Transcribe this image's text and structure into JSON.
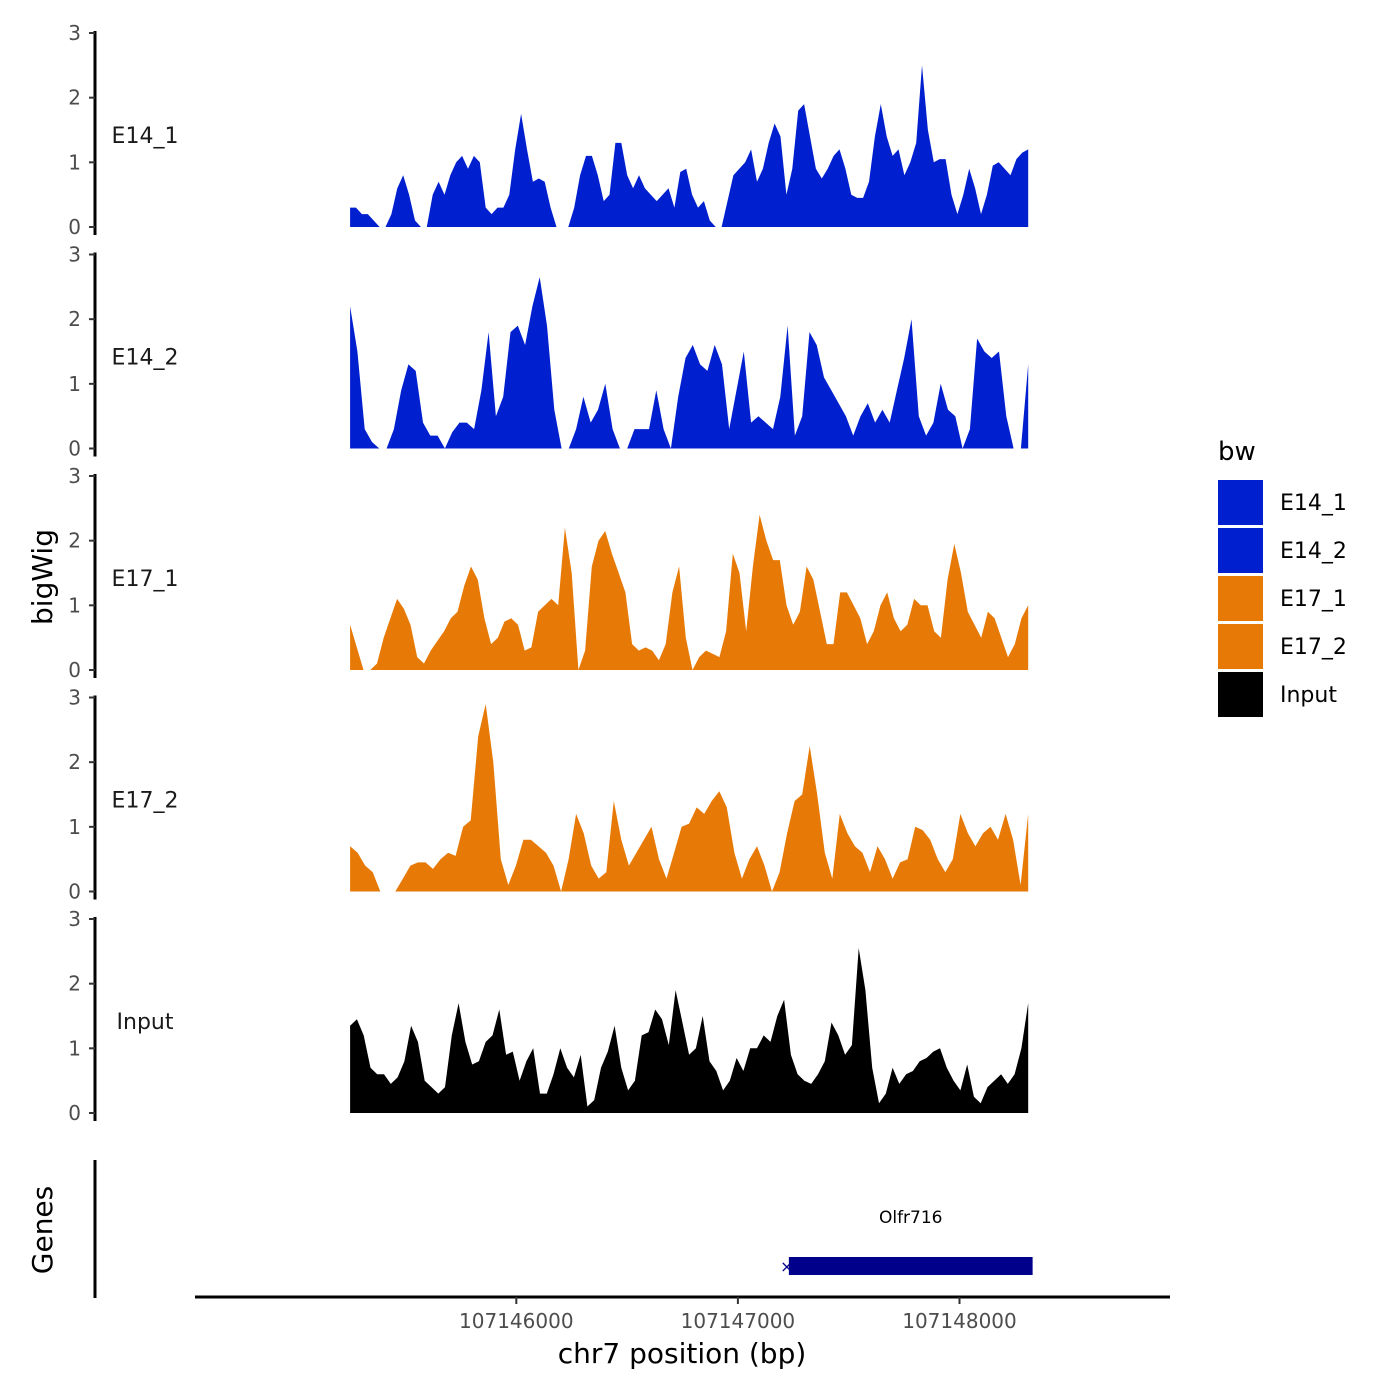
{
  "chart_data": {
    "type": "area",
    "ylabel": "bigWig",
    "xlabel": "chr7 position (bp)",
    "ylim": [
      0,
      3
    ],
    "yticks": [
      0,
      1,
      2,
      3
    ],
    "xlim": [
      107144550,
      107148950
    ],
    "xticks": [
      107146000,
      107147000,
      107148000
    ],
    "data_x_range": [
      107145250,
      107148310
    ],
    "legend": {
      "title": "bw",
      "position": "right",
      "entries": [
        {
          "name": "E14_1",
          "color": "#0020d0"
        },
        {
          "name": "E14_2",
          "color": "#0020d0"
        },
        {
          "name": "E17_1",
          "color": "#e77a06"
        },
        {
          "name": "E17_2",
          "color": "#e77a06"
        },
        {
          "name": "Input",
          "color": "#000000"
        }
      ]
    },
    "tracks": [
      {
        "name": "E14_1",
        "color": "#0020d0",
        "values": [
          0.3,
          0.3,
          0.2,
          0.2,
          0.1,
          0,
          0,
          0.2,
          0.6,
          0.8,
          0.5,
          0.1,
          0,
          0,
          0.5,
          0.7,
          0.5,
          0.8,
          1,
          1.1,
          0.9,
          1.1,
          1,
          0.3,
          0.2,
          0.3,
          0.3,
          0.5,
          1.2,
          1.75,
          1.2,
          0.7,
          0.75,
          0.7,
          0.3,
          0,
          0,
          0,
          0.3,
          0.8,
          1.1,
          1.1,
          0.8,
          0.4,
          0.5,
          1.3,
          1.3,
          0.8,
          0.6,
          0.8,
          0.6,
          0.5,
          0.4,
          0.5,
          0.6,
          0.3,
          0.85,
          0.9,
          0.5,
          0.3,
          0.4,
          0.1,
          0,
          0,
          0.4,
          0.8,
          0.9,
          1,
          1.2,
          0.7,
          0.9,
          1.3,
          1.6,
          1.4,
          0.5,
          0.9,
          1.8,
          1.9,
          1.4,
          0.9,
          0.75,
          0.9,
          1.1,
          1.2,
          0.9,
          0.5,
          0.45,
          0.45,
          0.7,
          1.4,
          1.9,
          1.4,
          1.1,
          1.2,
          0.8,
          1,
          1.3,
          2.5,
          1.5,
          1,
          1.05,
          1.05,
          0.5,
          0.2,
          0.5,
          0.9,
          0.6,
          0.2,
          0.5,
          0.95,
          1,
          0.9,
          0.8,
          1.05,
          1.15,
          1.2
        ]
      },
      {
        "name": "E14_2",
        "color": "#0020d0",
        "values": [
          2.2,
          1.5,
          0.3,
          0.1,
          0,
          0,
          0.3,
          0.9,
          1.3,
          1.2,
          0.4,
          0.2,
          0.2,
          0,
          0.25,
          0.4,
          0.4,
          0.3,
          0.9,
          1.8,
          0.5,
          0.8,
          1.8,
          1.9,
          1.6,
          2.2,
          2.65,
          1.9,
          0.6,
          0,
          0,
          0.3,
          0.8,
          0.4,
          0.6,
          1,
          0.3,
          0,
          0,
          0.3,
          0.3,
          0.3,
          0.9,
          0.3,
          0,
          0.8,
          1.4,
          1.6,
          1.3,
          1.2,
          1.6,
          1.3,
          0.3,
          0.9,
          1.5,
          0.4,
          0.5,
          0.4,
          0.3,
          0.8,
          1.9,
          0.2,
          0.5,
          1.8,
          1.6,
          1.1,
          0.9,
          0.7,
          0.5,
          0.2,
          0.5,
          0.7,
          0.4,
          0.6,
          0.4,
          0.9,
          1.4,
          2,
          0.5,
          0.2,
          0.4,
          1,
          0.6,
          0.5,
          0,
          0.3,
          1.7,
          1.5,
          1.4,
          1.5,
          0.5,
          0,
          0,
          1.3
        ]
      },
      {
        "name": "E17_1",
        "color": "#e77a06",
        "values": [
          0.7,
          0.35,
          0,
          0,
          0.1,
          0.5,
          0.8,
          1.1,
          0.95,
          0.7,
          0.2,
          0.1,
          0.3,
          0.45,
          0.6,
          0.8,
          0.9,
          1.3,
          1.6,
          1.4,
          0.8,
          0.4,
          0.5,
          0.75,
          0.8,
          0.7,
          0.3,
          0.35,
          0.9,
          1,
          1.1,
          1,
          2.2,
          1.5,
          0,
          0.3,
          1.6,
          2,
          2.15,
          1.8,
          1.5,
          1.2,
          0.4,
          0.3,
          0.35,
          0.3,
          0.15,
          0.4,
          1.2,
          1.6,
          0.5,
          0,
          0.2,
          0.3,
          0.25,
          0.2,
          0.6,
          1.8,
          1.5,
          0.6,
          1.6,
          2.4,
          2,
          1.7,
          1.7,
          1,
          0.7,
          0.9,
          1.6,
          1.4,
          0.9,
          0.4,
          0.4,
          1.2,
          1.2,
          1,
          0.8,
          0.4,
          0.6,
          1,
          1.2,
          0.8,
          0.6,
          0.7,
          1.1,
          1,
          1,
          0.6,
          0.5,
          1.4,
          1.95,
          1.5,
          0.9,
          0.7,
          0.5,
          0.9,
          0.8,
          0.5,
          0.2,
          0.4,
          0.8,
          1
        ]
      },
      {
        "name": "E17_2",
        "color": "#e77a06",
        "values": [
          0.7,
          0.6,
          0.4,
          0.3,
          0,
          0,
          0,
          0.2,
          0.4,
          0.45,
          0.45,
          0.35,
          0.5,
          0.6,
          0.55,
          1,
          1.1,
          2.4,
          2.9,
          2,
          0.5,
          0.1,
          0.4,
          0.8,
          0.8,
          0.7,
          0.6,
          0.4,
          0,
          0.5,
          1.2,
          0.9,
          0.4,
          0.2,
          0.3,
          1.4,
          0.8,
          0.4,
          0.6,
          0.8,
          1,
          0.5,
          0.2,
          0.6,
          1,
          1.05,
          1.3,
          1.2,
          1.4,
          1.55,
          1.3,
          0.6,
          0.2,
          0.5,
          0.7,
          0.4,
          0,
          0.3,
          0.9,
          1.4,
          1.5,
          2.25,
          1.5,
          0.6,
          0.2,
          1.2,
          0.9,
          0.7,
          0.6,
          0.3,
          0.7,
          0.5,
          0.2,
          0.45,
          0.5,
          1,
          0.95,
          0.8,
          0.5,
          0.3,
          0.5,
          1.2,
          0.9,
          0.7,
          0.9,
          1,
          0.8,
          1.2,
          0.8,
          0.1,
          1.2
        ]
      },
      {
        "name": "Input",
        "color": "#000000",
        "values": [
          1.35,
          1.45,
          1.2,
          0.7,
          0.6,
          0.6,
          0.45,
          0.55,
          0.8,
          1.35,
          1.1,
          0.5,
          0.4,
          0.3,
          0.4,
          1.2,
          1.7,
          1.1,
          0.75,
          0.8,
          1.1,
          1.2,
          1.6,
          0.9,
          0.95,
          0.5,
          0.8,
          1,
          0.3,
          0.3,
          0.6,
          1,
          0.7,
          0.55,
          0.9,
          0.1,
          0.2,
          0.7,
          0.95,
          1.35,
          0.7,
          0.35,
          0.5,
          1.2,
          1.25,
          1.6,
          1.45,
          1.05,
          1.9,
          1.4,
          0.9,
          1,
          1.5,
          0.8,
          0.65,
          0.35,
          0.5,
          0.85,
          0.65,
          1,
          1,
          1.2,
          1.1,
          1.5,
          1.75,
          0.9,
          0.6,
          0.5,
          0.45,
          0.6,
          0.8,
          1.4,
          1.2,
          0.9,
          1.05,
          2.55,
          1.9,
          0.7,
          0.15,
          0.3,
          0.7,
          0.45,
          0.6,
          0.65,
          0.8,
          0.85,
          0.95,
          1,
          0.7,
          0.5,
          0.35,
          0.75,
          0.25,
          0.15,
          0.4,
          0.5,
          0.6,
          0.45,
          0.6,
          1,
          1.7
        ]
      }
    ],
    "genes_track": {
      "ylabel": "Genes",
      "genes": [
        {
          "name": "Olfr716",
          "start": 107147230,
          "end": 107148330,
          "strand": "-",
          "color": "#00008b"
        }
      ]
    }
  }
}
